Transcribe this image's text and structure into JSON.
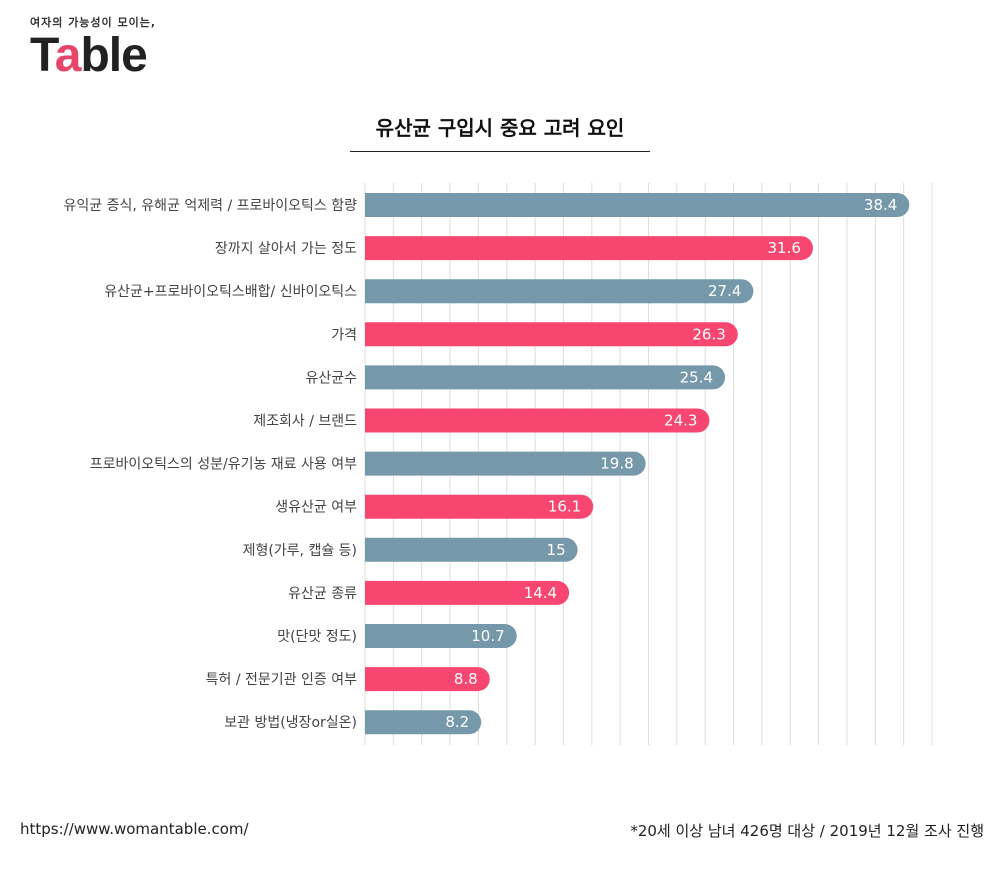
{
  "logo": {
    "tagline": "여자의 가능성이 모이는,",
    "brand_a": "T",
    "brand_b": "a",
    "brand_c": "ble"
  },
  "colors": {
    "steel": "#7599aa",
    "pink": "#f7466f",
    "grid": "#dddddd"
  },
  "footer": {
    "source_url": "https://www.womantable.com/",
    "note": "*20세 이상 남녀 426명 대상 / 2019년 12월 조사 진행"
  },
  "chart_data": {
    "type": "bar",
    "orientation": "horizontal",
    "title": "유산균 구입시 중요 고려 요인",
    "xlim": [
      0,
      40
    ],
    "grid": true,
    "categories": [
      "유익균 증식, 유해균 억제력 / 프로바이오틱스 함량",
      "장까지 살아서 가는 정도",
      "유산균+프로바이오틱스배합/ 신바이오틱스",
      "가격",
      "유산균수",
      "제조회사 / 브랜드",
      "프로바이오틱스의 성분/유기농 재료 사용 여부",
      "생유산균 여부",
      "제형(가루, 캡슐 등)",
      "유산균 종류",
      "맛(단맛 정도)",
      "특허 / 전문기관 인증 여부",
      "보관 방법(냉장or실온)"
    ],
    "values": [
      38.4,
      31.6,
      27.4,
      26.3,
      25.4,
      24.3,
      19.8,
      16.1,
      15,
      14.4,
      10.7,
      8.8,
      8.2
    ],
    "value_labels": [
      "38.4",
      "31.6",
      "27.4",
      "26.3",
      "25.4",
      "24.3",
      "19.8",
      "16.1",
      "15",
      "14.4",
      "10.7",
      "8.8",
      "8.2"
    ],
    "bar_colors": [
      "steel",
      "pink",
      "steel",
      "pink",
      "steel",
      "pink",
      "steel",
      "pink",
      "steel",
      "pink",
      "steel",
      "pink",
      "steel"
    ]
  }
}
